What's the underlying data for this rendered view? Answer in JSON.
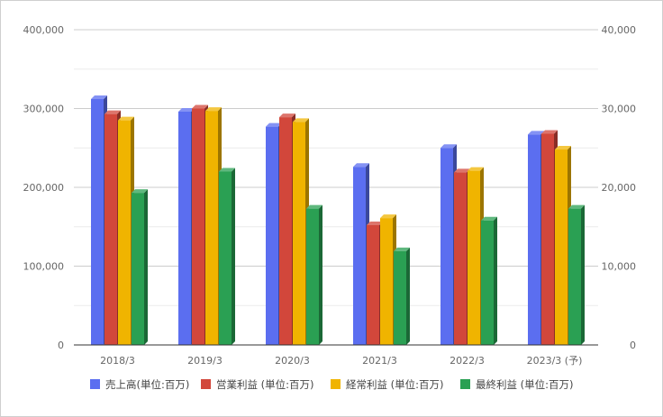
{
  "chart_data": {
    "type": "bar",
    "style": "3d-clustered-column",
    "categories": [
      "2018/3",
      "2019/3",
      "2020/3",
      "2021/3",
      "2022/3",
      "2023/3 (予)"
    ],
    "left_axis": {
      "ticks": [
        "0",
        "100,000",
        "200,000",
        "300,000",
        "400,000"
      ],
      "ylim": [
        0,
        400000
      ]
    },
    "right_axis": {
      "ticks": [
        "0",
        "10,000",
        "20,000",
        "30,000",
        "40,000"
      ],
      "ylim": [
        0,
        40000
      ]
    },
    "series": [
      {
        "name": "売上高(単位:百万)",
        "axis": "left",
        "color": "#5b6ef0",
        "values": [
          312000,
          296000,
          277000,
          226000,
          250000,
          267000
        ]
      },
      {
        "name": "営業利益 (単位:百万)",
        "axis": "right",
        "color": "#d2473b",
        "values": [
          29300,
          30000,
          28900,
          15200,
          21900,
          26800
        ]
      },
      {
        "name": "経常利益 (単位:百万)",
        "axis": "right",
        "color": "#f0b400",
        "values": [
          28500,
          29700,
          28300,
          16100,
          22100,
          24800
        ]
      },
      {
        "name": "最終利益 (単位:百万)",
        "axis": "right",
        "color": "#2aa053",
        "values": [
          19300,
          22000,
          17300,
          11900,
          15800,
          17300
        ]
      }
    ],
    "grid": true,
    "legend_position": "bottom"
  }
}
